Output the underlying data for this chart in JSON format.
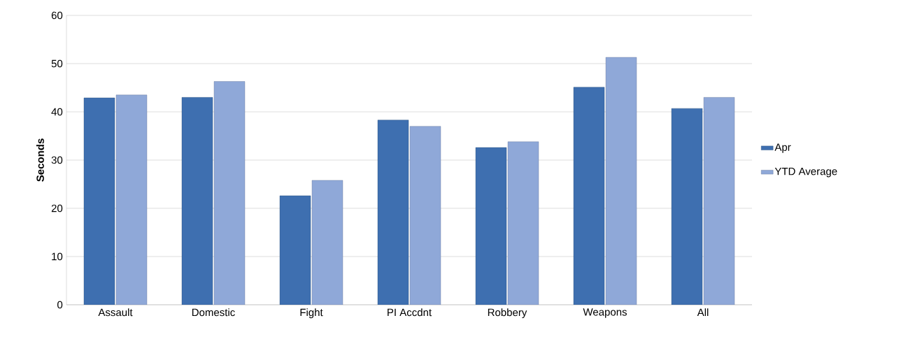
{
  "chart_data": {
    "type": "bar",
    "ylabel": "Seconds",
    "categories": [
      "Assault",
      "Domestic",
      "Fight",
      "PI Accdnt",
      "Robbery",
      "Weapons",
      "All"
    ],
    "series": [
      {
        "name": "Apr",
        "color": "#3e6fb0",
        "values": [
          42.9,
          43.0,
          22.6,
          38.3,
          32.6,
          45.1,
          40.7
        ]
      },
      {
        "name": "YTD Average",
        "color": "#8fa8d8",
        "values": [
          43.5,
          46.3,
          25.8,
          37.0,
          33.8,
          51.3,
          43.0
        ]
      }
    ],
    "ylim": [
      0,
      60
    ],
    "yticks": [
      0,
      10,
      20,
      30,
      40,
      50,
      60
    ],
    "grid": "y",
    "legend": "right"
  }
}
